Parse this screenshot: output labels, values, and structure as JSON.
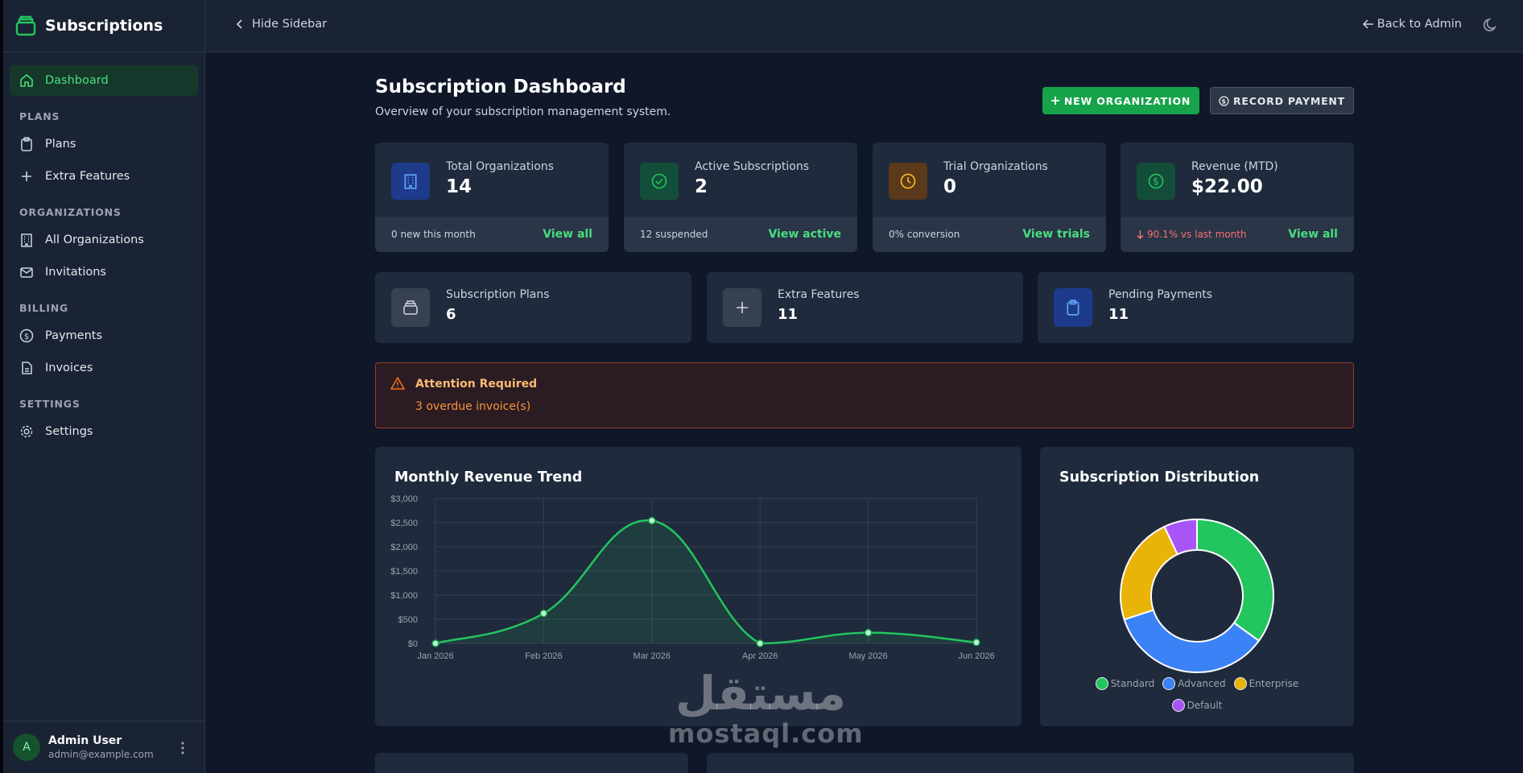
{
  "app": {
    "title": "Subscriptions"
  },
  "sidebar": {
    "active_item": {
      "label": "Dashboard",
      "icon": "home-icon"
    },
    "sections": [
      {
        "title": "PLANS",
        "items": [
          {
            "label": "Plans",
            "icon": "clipboard-icon"
          },
          {
            "label": "Extra Features",
            "icon": "plus-icon"
          }
        ]
      },
      {
        "title": "ORGANIZATIONS",
        "items": [
          {
            "label": "All Organizations",
            "icon": "building-icon"
          },
          {
            "label": "Invitations",
            "icon": "mail-icon"
          }
        ]
      },
      {
        "title": "BILLING",
        "items": [
          {
            "label": "Payments",
            "icon": "dollar-circle-icon"
          },
          {
            "label": "Invoices",
            "icon": "document-icon"
          }
        ]
      },
      {
        "title": "SETTINGS",
        "items": [
          {
            "label": "Settings",
            "icon": "gear-icon"
          }
        ]
      }
    ],
    "user": {
      "initial": "A",
      "name": "Admin User",
      "email": "admin@example.com"
    }
  },
  "topbar": {
    "hide_sidebar": "Hide Sidebar",
    "back_to_admin": "Back to Admin"
  },
  "header": {
    "title": "Subscription Dashboard",
    "subtitle": "Overview of your subscription management system.",
    "new_org_button": "NEW ORGANIZATION",
    "record_payment_button": "RECORD PAYMENT"
  },
  "stats": [
    {
      "label": "Total Organizations",
      "value": "14",
      "note": "0 new this month",
      "link": "View all",
      "icon": "building-icon",
      "color": "#3b82f6"
    },
    {
      "label": "Active Subscriptions",
      "value": "2",
      "note": "12 suspended",
      "link": "View active",
      "icon": "check-circle-icon",
      "color": "#22c55e"
    },
    {
      "label": "Trial Organizations",
      "value": "0",
      "note": "0% conversion",
      "link": "View trials",
      "icon": "clock-icon",
      "color": "#f59e0b"
    },
    {
      "label": "Revenue (MTD)",
      "value": "$22.00",
      "note": "90.1% vs last month",
      "link": "View all",
      "icon": "dollar-circle-icon",
      "color": "#22c55e"
    }
  ],
  "mini_stats": [
    {
      "label": "Subscription Plans",
      "value": "6",
      "icon": "stack-icon"
    },
    {
      "label": "Extra Features",
      "value": "11",
      "icon": "plus-icon"
    },
    {
      "label": "Pending Payments",
      "value": "11",
      "icon": "clipboard-icon"
    }
  ],
  "alert": {
    "title": "Attention Required",
    "text": "3 overdue invoice(s)"
  },
  "revenue_panel": {
    "title": "Monthly Revenue Trend"
  },
  "distribution_panel": {
    "title": "Subscription Distribution"
  },
  "watermark": {
    "arabic": "مستقل",
    "latin": "mostaql.com"
  },
  "chart_data": [
    {
      "type": "line",
      "title": "Monthly Revenue Trend",
      "categories": [
        "Jan 2026",
        "Feb 2026",
        "Mar 2026",
        "Apr 2026",
        "May 2026",
        "Jun 2026"
      ],
      "series": [
        {
          "values": [
            0,
            620,
            2540,
            0,
            220,
            20
          ],
          "color": "#22c55e"
        }
      ],
      "ylim": [
        0,
        3000
      ],
      "yticks": [
        0,
        500,
        1000,
        1500,
        2000,
        2500,
        3000
      ],
      "ytick_labels": [
        "$0",
        "$500",
        "$1,000",
        "$1,500",
        "$2,000",
        "$2,500",
        "$3,000"
      ],
      "grid": true,
      "area_fill": true
    },
    {
      "type": "pie",
      "title": "Subscription Distribution",
      "donut": true,
      "categories": [
        "Standard",
        "Advanced",
        "Enterprise",
        "Default"
      ],
      "values": [
        35,
        35,
        23,
        7
      ],
      "colors": [
        "#22c55e",
        "#3b82f6",
        "#eab308",
        "#a855f7"
      ],
      "legend": "bottom"
    }
  ]
}
